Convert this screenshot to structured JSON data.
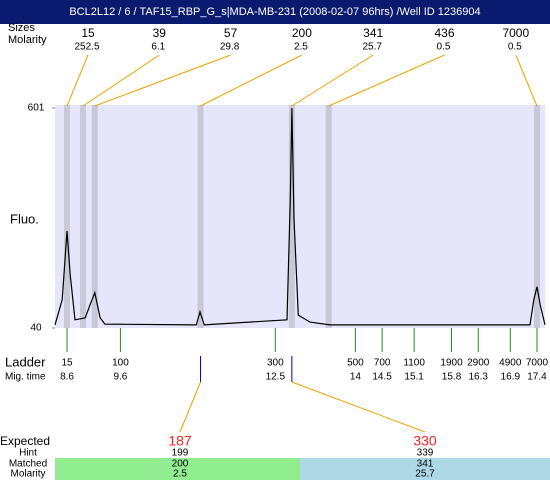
{
  "chart_data": {
    "type": "line",
    "title": "BCL2L12 / 6 / TAF15_RBP_G_s|MDA-MB-231 (2008-02-07 96hrs) /Well ID 1236904",
    "y_label": "Fluo.",
    "ylim": [
      40,
      601
    ],
    "yticks": [
      40,
      601
    ],
    "xlim": [
      8.375,
      17.55
    ],
    "color": "#000000",
    "band_color": "#c8c8d8",
    "plot_background": "#e6e6fa",
    "peaks": {
      "size_label": "Sizes",
      "molarity_label": "Molarity",
      "sizes": [
        15,
        39,
        57,
        200,
        341,
        436,
        7000
      ],
      "molarity": [
        252.5,
        6.1,
        29.8,
        2.5,
        25.7,
        0.5,
        0.5
      ],
      "time": [
        8.6,
        8.9,
        9.12,
        11.1,
        12.81,
        13.5,
        17.4
      ]
    },
    "trace": {
      "time": [
        8.375,
        8.51,
        8.6,
        8.66,
        8.75,
        8.94,
        9.03,
        9.12,
        9.22,
        9.31,
        11.02,
        11.09,
        11.17,
        12.72,
        12.78,
        12.81,
        12.85,
        12.93,
        13.15,
        13.52,
        17.27,
        17.34,
        17.4,
        17.46,
        17.55
      ],
      "fluo": [
        48,
        112,
        287,
        176,
        61,
        66,
        99,
        130,
        66,
        50,
        48,
        81,
        48,
        61,
        369,
        601,
        318,
        73,
        55,
        48,
        48,
        112,
        145,
        99,
        48
      ]
    },
    "ladder": {
      "label": "Ladder",
      "time_label": "Mig. time",
      "color": "#228b22",
      "sizes": [
        15,
        100,
        300,
        500,
        700,
        1100,
        1900,
        2900,
        4900,
        7000
      ],
      "time": [
        8.6,
        9.6,
        12.5,
        14,
        14.5,
        15.1,
        15.8,
        16.3,
        16.9,
        17.4
      ]
    },
    "expected": {
      "label": "Expected",
      "hint_label": "Hint",
      "matched_label": "Matched",
      "molarity_label": "Molarity",
      "values": [
        187,
        330
      ],
      "hint": [
        199,
        339
      ],
      "matched": [
        200,
        341
      ],
      "molarity": [
        2.5,
        25.7
      ],
      "colors": [
        "#90ee90",
        "#add8e6"
      ]
    }
  }
}
